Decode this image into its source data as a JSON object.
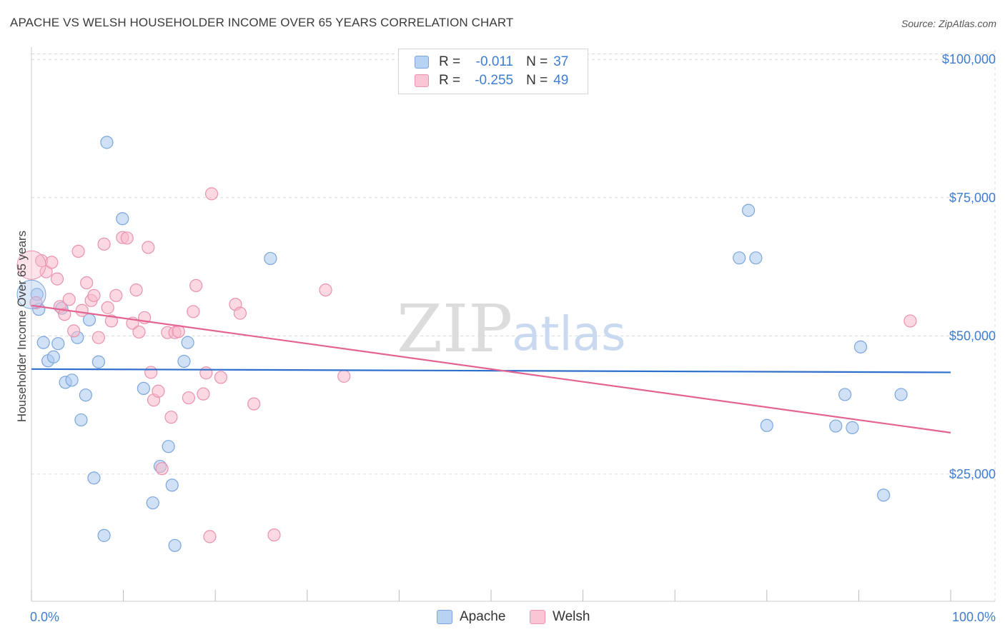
{
  "title": "APACHE VS WELSH HOUSEHOLDER INCOME OVER 65 YEARS CORRELATION CHART",
  "source": "Source: ZipAtlas.com",
  "watermark": {
    "zip": "ZIP",
    "atlas": "atlas"
  },
  "legend": {
    "r_label": "R =",
    "n_label": "N =",
    "apache": {
      "r": "-0.011",
      "n": "37"
    },
    "welsh": {
      "r": "-0.255",
      "n": "49"
    }
  },
  "chart_data": {
    "type": "scatter",
    "title": "APACHE VS WELSH HOUSEHOLDER INCOME OVER 65 YEARS CORRELATION CHART",
    "xlabel": "",
    "ylabel": "Householder Income Over 65 years",
    "xlim": [
      0,
      100
    ],
    "ylim": [
      2000,
      103000
    ],
    "x_tick_labels": [
      "0.0%",
      "100.0%"
    ],
    "y_ticks": [
      25000,
      50000,
      75000,
      100000
    ],
    "y_tick_labels": [
      "$25,000",
      "$50,000",
      "$75,000",
      "$100,000"
    ],
    "grid": true,
    "legend_position": "bottom-center",
    "colors": {
      "apache_fill": "#a9c8ef",
      "apache_stroke": "#7aa6dc",
      "apache_line": "#2f6fcc",
      "welsh_fill": "#f7b8cb",
      "welsh_stroke": "#ea92ae",
      "welsh_line": "#e36492",
      "tick": "#3f7dd1",
      "grid": "#d9d9d9"
    },
    "series": [
      {
        "name": "Apache",
        "points": [
          [
            0.6,
            57500
          ],
          [
            0.8,
            54800
          ],
          [
            1.3,
            48800
          ],
          [
            1.8,
            45500
          ],
          [
            2.4,
            46200
          ],
          [
            2.9,
            48600
          ],
          [
            3.3,
            55000
          ],
          [
            3.7,
            41600
          ],
          [
            4.4,
            42000
          ],
          [
            5.0,
            49700
          ],
          [
            5.4,
            34800
          ],
          [
            5.9,
            39300
          ],
          [
            6.3,
            52900
          ],
          [
            6.8,
            24300
          ],
          [
            7.3,
            45300
          ],
          [
            7.9,
            13900
          ],
          [
            8.2,
            85000
          ],
          [
            9.9,
            71200
          ],
          [
            12.2,
            40500
          ],
          [
            13.2,
            19800
          ],
          [
            14.0,
            26400
          ],
          [
            14.9,
            30000
          ],
          [
            15.3,
            23000
          ],
          [
            15.6,
            12100
          ],
          [
            16.6,
            45400
          ],
          [
            17.0,
            48800
          ],
          [
            26.0,
            64000
          ],
          [
            77.0,
            64100
          ],
          [
            78.0,
            72700
          ],
          [
            78.8,
            64100
          ],
          [
            80.0,
            33800
          ],
          [
            87.5,
            33700
          ],
          [
            88.5,
            39400
          ],
          [
            89.3,
            33400
          ],
          [
            90.2,
            48000
          ],
          [
            92.7,
            21200
          ],
          [
            94.6,
            39400
          ]
        ],
        "trend": {
          "x": [
            0,
            100
          ],
          "y": [
            44000,
            43400
          ]
        }
      },
      {
        "name": "Welsh",
        "points": [
          [
            0.5,
            56000
          ],
          [
            1.1,
            63600
          ],
          [
            1.6,
            61600
          ],
          [
            2.2,
            63300
          ],
          [
            2.8,
            60300
          ],
          [
            3.1,
            55300
          ],
          [
            3.6,
            53900
          ],
          [
            4.1,
            56600
          ],
          [
            4.6,
            50900
          ],
          [
            5.1,
            65300
          ],
          [
            5.5,
            54600
          ],
          [
            6.0,
            59600
          ],
          [
            6.5,
            56400
          ],
          [
            6.8,
            57300
          ],
          [
            7.3,
            49700
          ],
          [
            7.9,
            66600
          ],
          [
            8.3,
            55100
          ],
          [
            8.7,
            52700
          ],
          [
            9.2,
            57300
          ],
          [
            9.9,
            67800
          ],
          [
            10.4,
            67700
          ],
          [
            11.0,
            52300
          ],
          [
            11.4,
            58300
          ],
          [
            11.7,
            50700
          ],
          [
            12.3,
            53300
          ],
          [
            12.7,
            66000
          ],
          [
            13.0,
            43400
          ],
          [
            13.3,
            38400
          ],
          [
            13.8,
            40000
          ],
          [
            14.2,
            26000
          ],
          [
            14.8,
            50600
          ],
          [
            15.2,
            35300
          ],
          [
            15.6,
            50600
          ],
          [
            16.0,
            50800
          ],
          [
            17.1,
            38800
          ],
          [
            17.6,
            54400
          ],
          [
            17.9,
            59100
          ],
          [
            18.7,
            39500
          ],
          [
            19.0,
            43300
          ],
          [
            19.4,
            13700
          ],
          [
            19.6,
            75700
          ],
          [
            20.6,
            42500
          ],
          [
            22.2,
            55700
          ],
          [
            22.7,
            54100
          ],
          [
            24.2,
            37700
          ],
          [
            26.4,
            14000
          ],
          [
            32.0,
            58300
          ],
          [
            34.0,
            42700
          ],
          [
            95.6,
            52700
          ]
        ],
        "trend": {
          "x": [
            0,
            100
          ],
          "y": [
            55500,
            32500
          ]
        }
      }
    ]
  },
  "bottom_legend": {
    "apache": "Apache",
    "welsh": "Welsh"
  }
}
